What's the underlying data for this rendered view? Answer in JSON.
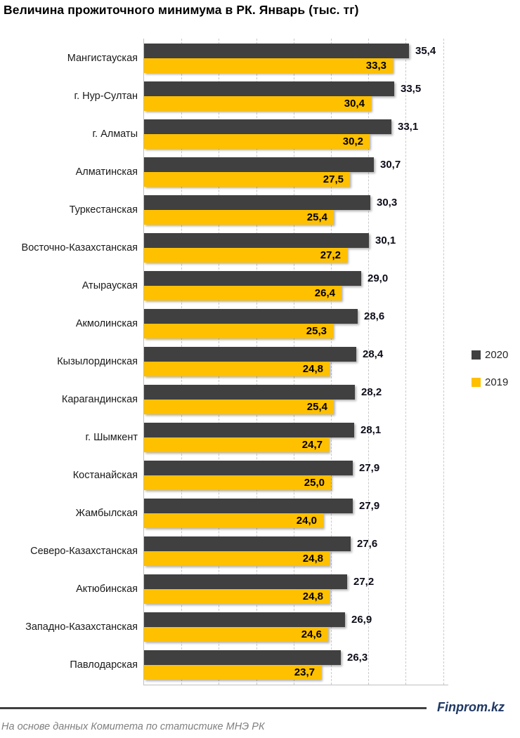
{
  "chart_data": {
    "type": "bar",
    "orientation": "horizontal",
    "title": "Величина прожиточного минимума в РК. Январь (тыс. тг)",
    "categories": [
      "Мангистауская",
      "г. Нур-Султан",
      "г. Алматы",
      "Алматинская",
      "Туркестанская",
      "Восточно-Казахстанская",
      "Атырауская",
      "Акмолинская",
      "Кызылординская",
      "Карагандинская",
      "г. Шымкент",
      "Костанайская",
      "Жамбылская",
      "Северо-Казахстанская",
      "Актюбинская",
      "Западно-Казахстанская",
      "Павлодарская"
    ],
    "series": [
      {
        "name": "2020",
        "color": "#404040",
        "values": [
          35.4,
          33.5,
          33.1,
          30.7,
          30.3,
          30.1,
          29.0,
          28.6,
          28.4,
          28.2,
          28.1,
          27.9,
          27.9,
          27.6,
          27.2,
          26.9,
          26.3
        ]
      },
      {
        "name": "2019",
        "color": "#FFC000",
        "values": [
          33.3,
          30.4,
          30.2,
          27.5,
          25.4,
          27.2,
          26.4,
          25.3,
          24.8,
          25.4,
          24.7,
          25.0,
          24.0,
          24.8,
          24.8,
          24.6,
          23.7
        ]
      }
    ],
    "xlabel": "",
    "ylabel": "",
    "xlim": [
      0,
      40.7
    ],
    "gridline_values": [
      5,
      10,
      15,
      20,
      25,
      30,
      35,
      40
    ],
    "grid": "dashed-vertical",
    "legend_position": "right",
    "value_label_decimal_separator": ","
  },
  "footer": {
    "brand": "Finprom.kz",
    "source": "На основе данных Комитета по статистике МНЭ РК"
  }
}
